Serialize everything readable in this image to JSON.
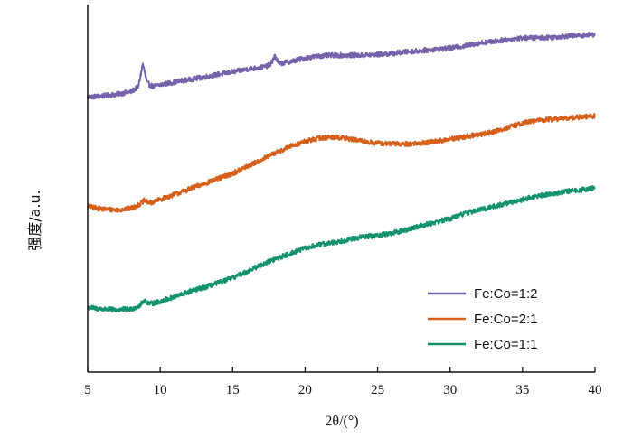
{
  "chart_data": {
    "type": "line",
    "xlabel": "2θ/(°)",
    "ylabel": "强度/a.u.",
    "xlim": [
      5,
      40
    ],
    "xticks": [
      5,
      10,
      15,
      20,
      25,
      30,
      35,
      40
    ],
    "yticks_shown": false,
    "legend_position": "bottom-right",
    "series": [
      {
        "name": "Fe:Co=1:2",
        "color": "#7463a8",
        "x": [
          5,
          6,
          7,
          8,
          8.5,
          8.8,
          9.1,
          9.5,
          10,
          11,
          12,
          13,
          14,
          15,
          16,
          17,
          17.6,
          17.9,
          18.2,
          19,
          20,
          21,
          22,
          23,
          24,
          25,
          26,
          27,
          28,
          29,
          30,
          31,
          32,
          33,
          34,
          35,
          36,
          37,
          38,
          39,
          40
        ],
        "y": [
          0.76,
          0.763,
          0.768,
          0.775,
          0.79,
          0.855,
          0.8,
          0.79,
          0.795,
          0.803,
          0.81,
          0.817,
          0.825,
          0.832,
          0.84,
          0.845,
          0.852,
          0.878,
          0.856,
          0.862,
          0.872,
          0.878,
          0.88,
          0.88,
          0.88,
          0.882,
          0.885,
          0.89,
          0.893,
          0.897,
          0.9,
          0.907,
          0.915,
          0.92,
          0.925,
          0.93,
          0.93,
          0.932,
          0.935,
          0.937,
          0.94
        ]
      },
      {
        "name": "Fe:Co=2:1",
        "color": "#d4601c",
        "x": [
          5,
          6,
          7,
          8,
          8.6,
          8.9,
          9.3,
          10,
          11,
          12,
          13,
          14,
          15,
          16,
          17,
          18,
          19,
          20,
          21,
          22,
          23,
          24,
          25,
          26,
          27,
          28,
          29,
          30,
          31,
          32,
          33,
          34,
          35,
          36,
          37,
          38,
          39,
          40
        ],
        "y": [
          0.445,
          0.438,
          0.435,
          0.44,
          0.452,
          0.462,
          0.455,
          0.465,
          0.48,
          0.495,
          0.51,
          0.525,
          0.54,
          0.56,
          0.58,
          0.6,
          0.618,
          0.632,
          0.642,
          0.645,
          0.64,
          0.632,
          0.627,
          0.625,
          0.625,
          0.627,
          0.632,
          0.638,
          0.645,
          0.652,
          0.66,
          0.672,
          0.685,
          0.692,
          0.696,
          0.699,
          0.702,
          0.705
        ]
      },
      {
        "name": "Fe:Co=1:1",
        "color": "#14926e",
        "x": [
          5,
          6,
          7,
          8,
          8.6,
          8.9,
          9.3,
          10,
          11,
          12,
          13,
          14,
          15,
          16,
          17,
          18,
          19,
          20,
          21,
          22,
          23,
          24,
          25,
          26,
          27,
          28,
          29,
          30,
          31,
          32,
          33,
          34,
          35,
          36,
          37,
          38,
          39,
          40
        ],
        "y": [
          0.155,
          0.15,
          0.148,
          0.15,
          0.16,
          0.175,
          0.165,
          0.172,
          0.185,
          0.2,
          0.212,
          0.225,
          0.24,
          0.258,
          0.278,
          0.295,
          0.31,
          0.325,
          0.335,
          0.342,
          0.35,
          0.358,
          0.362,
          0.368,
          0.378,
          0.39,
          0.4,
          0.41,
          0.425,
          0.435,
          0.445,
          0.455,
          0.465,
          0.475,
          0.482,
          0.488,
          0.493,
          0.497
        ]
      }
    ]
  }
}
